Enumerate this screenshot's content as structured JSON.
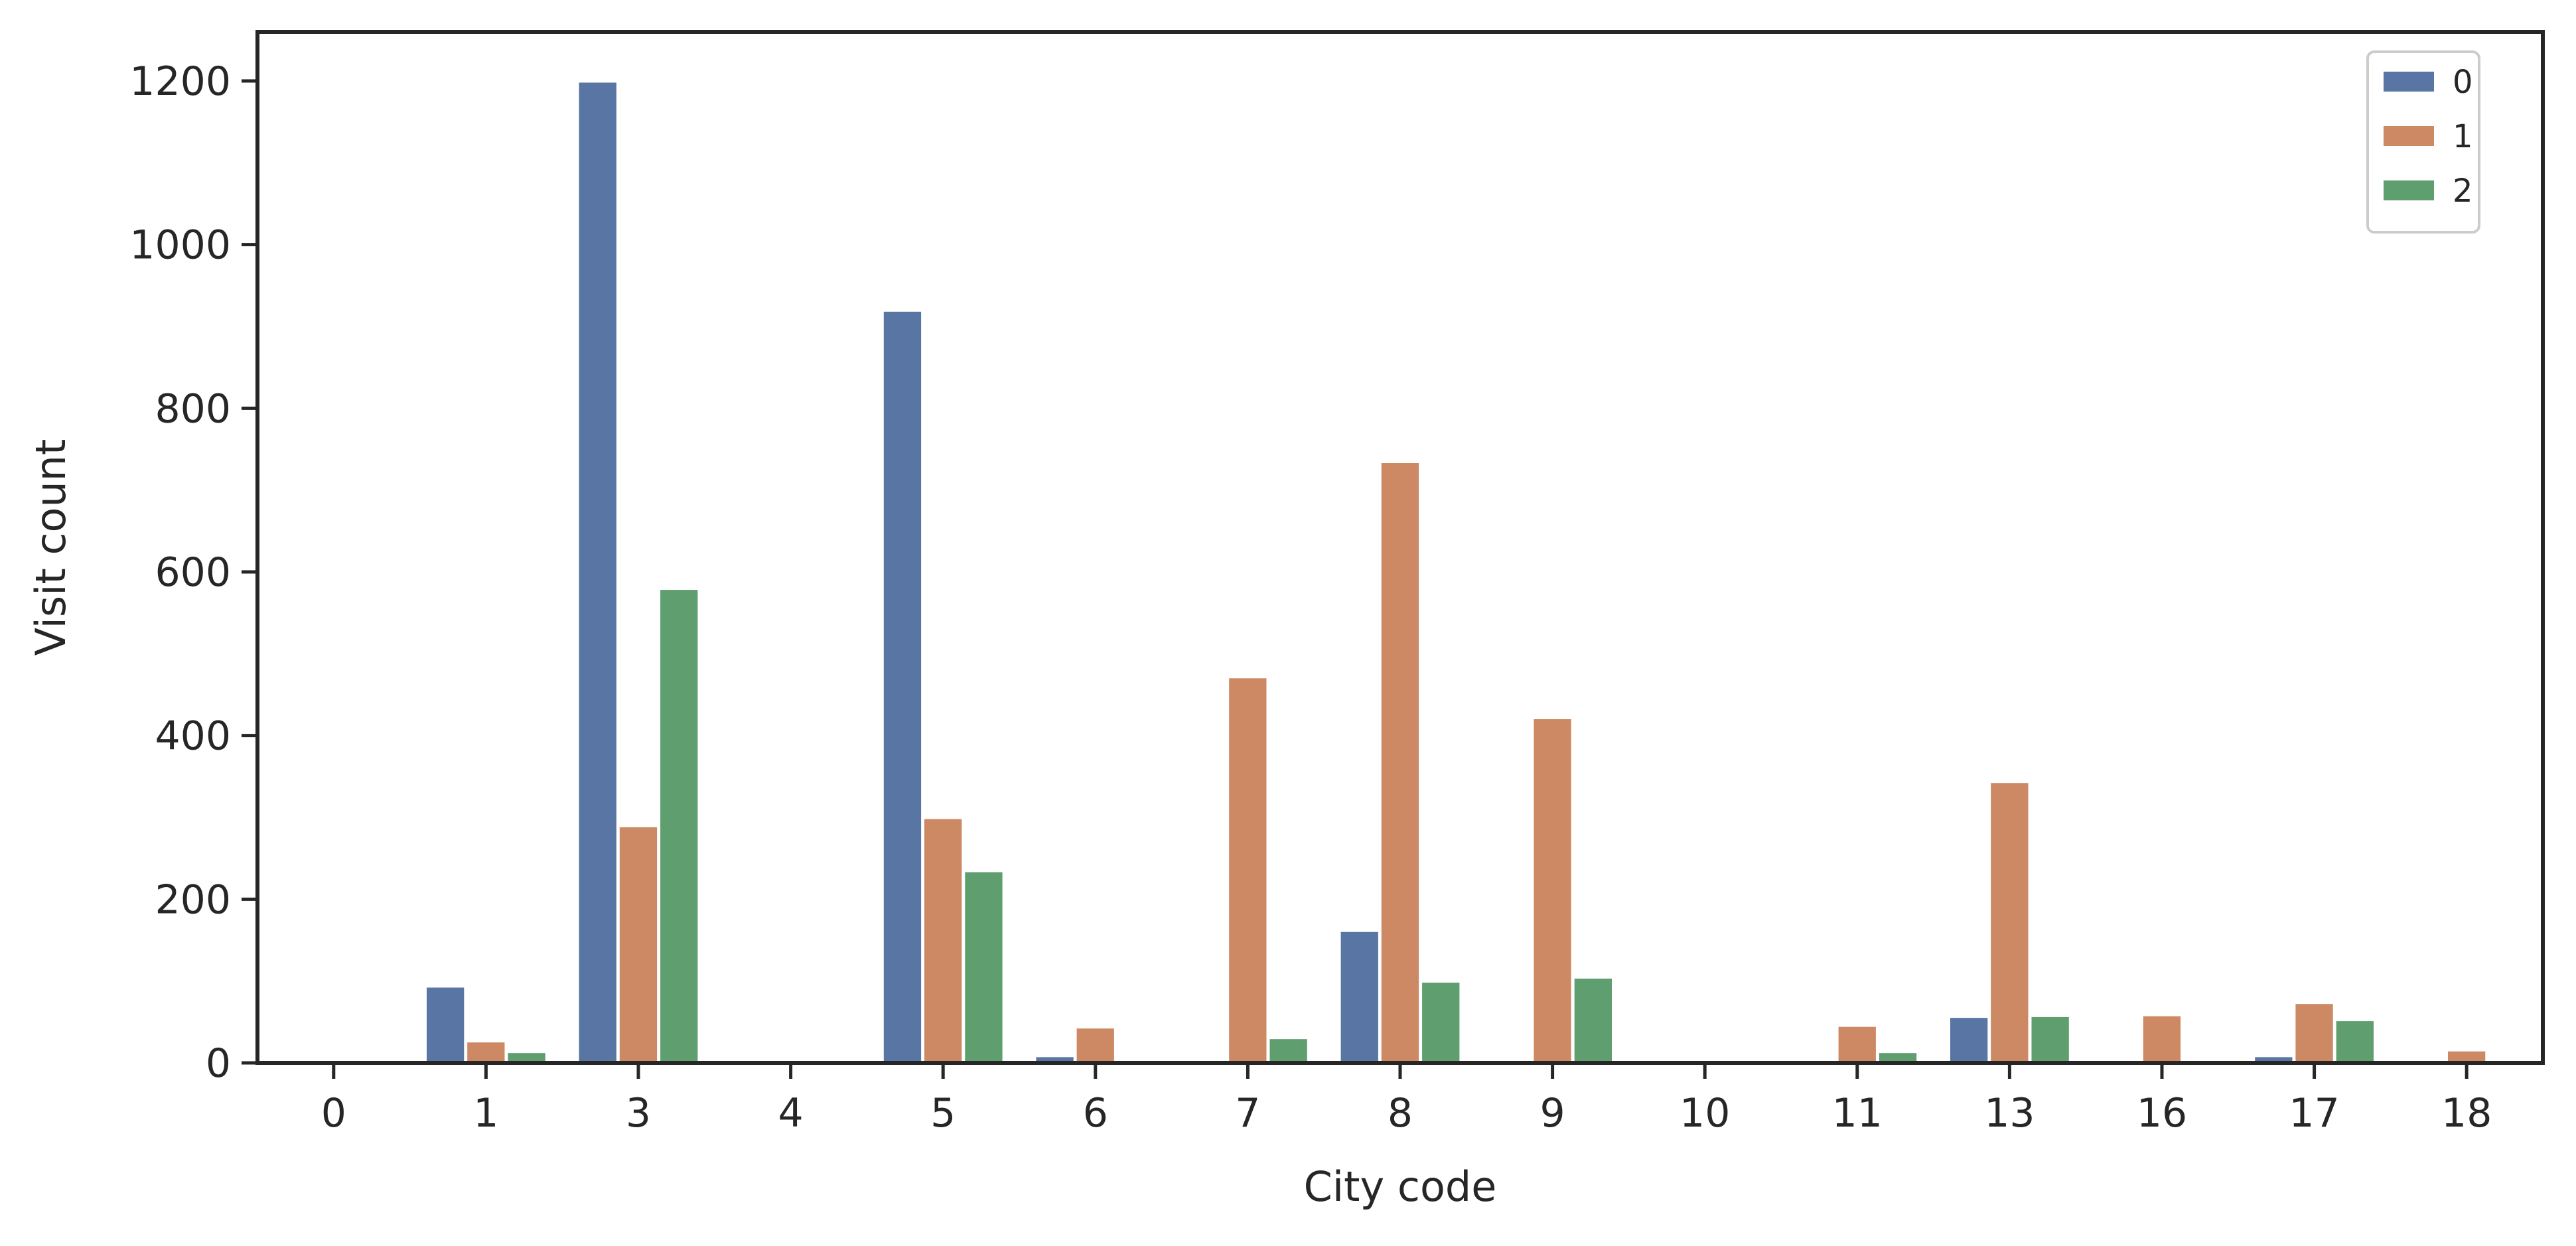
{
  "chart_data": {
    "type": "bar",
    "title": "",
    "xlabel": "City code",
    "ylabel": "Visit count",
    "categories": [
      "0",
      "1",
      "3",
      "4",
      "5",
      "6",
      "7",
      "8",
      "9",
      "10",
      "11",
      "13",
      "16",
      "17",
      "18"
    ],
    "series": [
      {
        "name": "0",
        "color": "#5875a4",
        "values": [
          0,
          92,
          1198,
          0,
          918,
          7,
          0,
          160,
          0,
          0,
          0,
          55,
          0,
          7,
          0
        ]
      },
      {
        "name": "1",
        "color": "#cc8963",
        "values": [
          0,
          25,
          288,
          0,
          298,
          42,
          470,
          733,
          420,
          0,
          44,
          342,
          57,
          72,
          14
        ]
      },
      {
        "name": "2",
        "color": "#5f9e6e",
        "values": [
          0,
          12,
          578,
          0,
          233,
          0,
          29,
          98,
          103,
          0,
          12,
          56,
          0,
          51,
          0
        ]
      }
    ],
    "ylim": [
      0,
      1260
    ],
    "yticks": [
      0,
      200,
      400,
      600,
      800,
      1000,
      1200
    ],
    "grid": false,
    "legend_position": "top-right"
  }
}
